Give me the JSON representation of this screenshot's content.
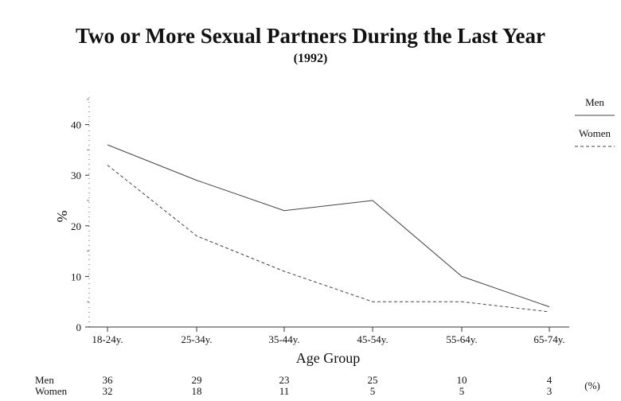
{
  "chart_data": {
    "type": "line",
    "title": "Two or More Sexual Partners During the Last Year",
    "subtitle": "(1992)",
    "xlabel": "Age Group",
    "ylabel": "%",
    "categories": [
      "18-24y.",
      "25-34y.",
      "35-44y.",
      "45-54y.",
      "55-64y.",
      "65-74y."
    ],
    "yticks": [
      0,
      10,
      20,
      30,
      40
    ],
    "ylim": [
      0,
      45
    ],
    "grid": false,
    "legend_position": "right",
    "series": [
      {
        "name": "Men",
        "values": [
          36,
          29,
          23,
          25,
          10,
          4
        ],
        "color": "#444444",
        "dash": "solid"
      },
      {
        "name": "Women",
        "values": [
          32,
          18,
          11,
          5,
          5,
          3
        ],
        "color": "#444444",
        "dash": "dashed"
      }
    ],
    "table": {
      "unit": "(%)",
      "rows": [
        {
          "label": "Men",
          "values": [
            "36",
            "29",
            "23",
            "25",
            "10",
            "4"
          ]
        },
        {
          "label": "Women",
          "values": [
            "32",
            "18",
            "11",
            "5",
            "5",
            "3"
          ]
        }
      ]
    }
  }
}
